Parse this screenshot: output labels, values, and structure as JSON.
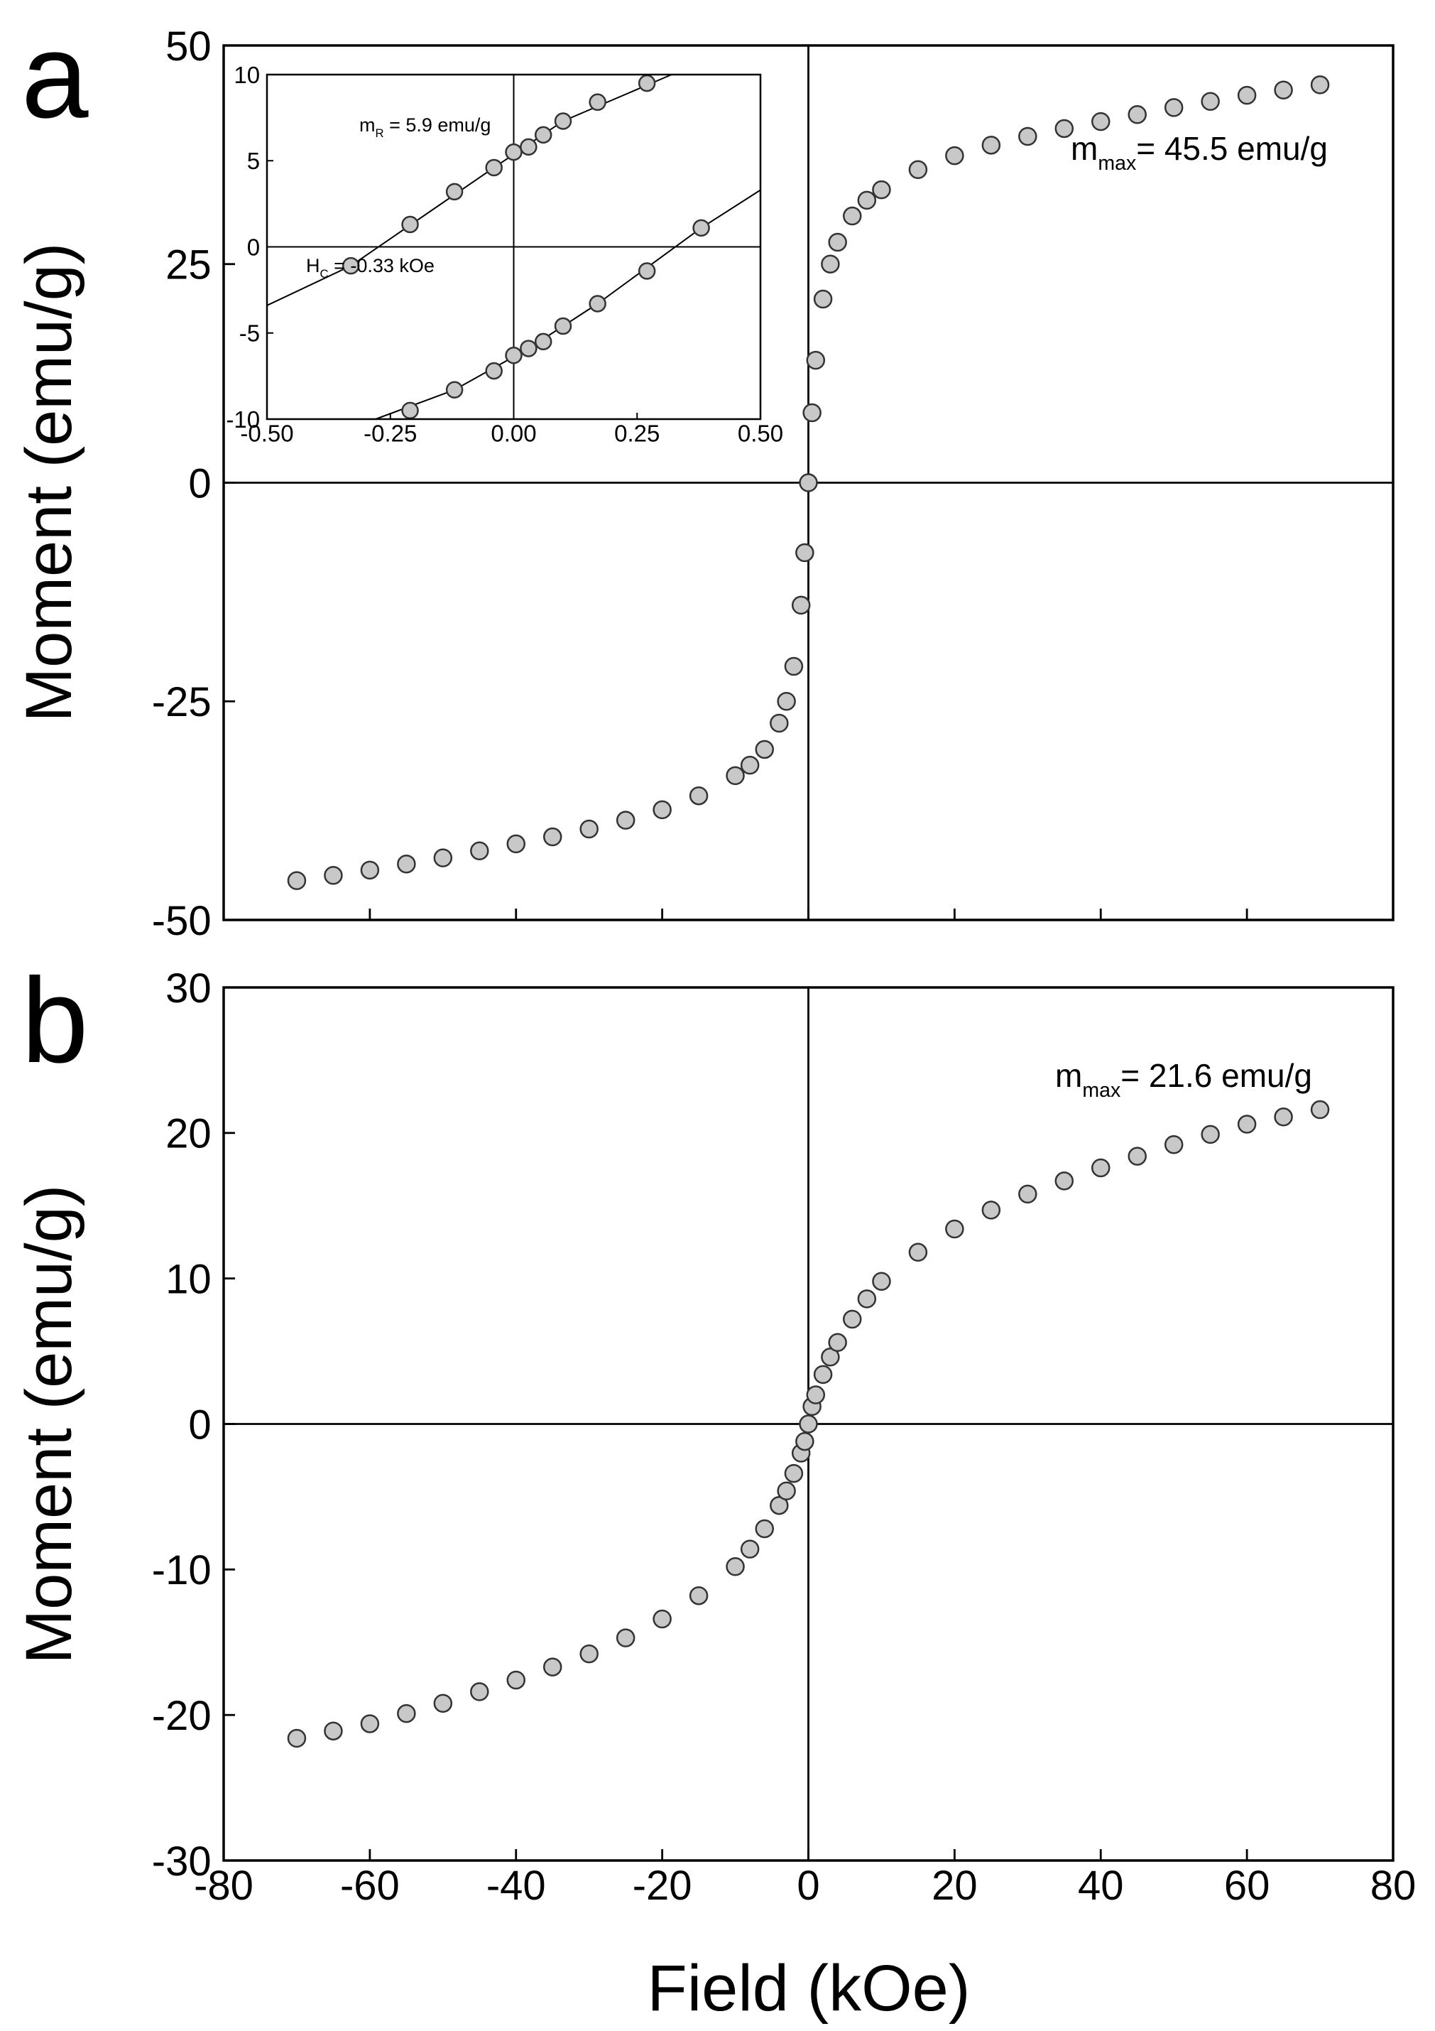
{
  "chart_data": [
    {
      "type": "scatter",
      "panel": "a",
      "ylabel": "Moment (emu/g)",
      "xlim": [
        -80,
        80
      ],
      "ylim": [
        -50,
        50
      ],
      "xticks": [
        -80,
        -60,
        -40,
        -20,
        0,
        20,
        40,
        60,
        80
      ],
      "xtick_labels": false,
      "yticks": [
        -50,
        -25,
        0,
        25,
        50
      ],
      "zero_lines": true,
      "annotation": {
        "text": "m",
        "sub": "max",
        "after": "= 45.5 emu/g"
      },
      "series": [
        {
          "style": "markers",
          "color": "#c8c8c8",
          "edgecolor": "#333333",
          "x": [
            -70,
            -65,
            -60,
            -55,
            -50,
            -45,
            -40,
            -35,
            -30,
            -25,
            -20,
            -15,
            -10,
            -8,
            -6,
            -4,
            -3,
            -2,
            -1,
            -0.5,
            0,
            0.5,
            1,
            2,
            3,
            4,
            6,
            8,
            10,
            15,
            20,
            25,
            30,
            35,
            40,
            45,
            50,
            55,
            60,
            65,
            70
          ],
          "values": [
            -45.5,
            -44.9,
            -44.3,
            -43.6,
            -42.9,
            -42.1,
            -41.3,
            -40.5,
            -39.6,
            -38.6,
            -37.4,
            -35.8,
            -33.5,
            -32.3,
            -30.5,
            -27.5,
            -25,
            -21,
            -14,
            -8,
            0,
            8,
            14,
            21,
            25,
            27.5,
            30.5,
            32.3,
            33.5,
            35.8,
            37.4,
            38.6,
            39.6,
            40.5,
            41.3,
            42.1,
            42.9,
            43.6,
            44.3,
            44.9,
            45.5
          ]
        }
      ]
    },
    {
      "type": "scatter",
      "xlim": [
        -0.5,
        0.5
      ],
      "ylim": [
        -10,
        10
      ],
      "xticks": [
        {
          "value": -0.5,
          "label": "-0.50"
        },
        -0.25,
        {
          "value": 0,
          "label": "0.00"
        },
        0.25,
        {
          "value": 0.5,
          "label": "0.50"
        }
      ],
      "yticks": [
        -10,
        -5,
        0,
        5,
        10
      ],
      "zero_lines": true,
      "annotations": [
        {
          "text": "m",
          "sub": "R",
          "after": " = 5.9 emu/g"
        },
        {
          "text": "H",
          "sub": "C",
          "after": " = -0.33 kOe"
        }
      ],
      "series": [
        {
          "style": "line",
          "color": "#000000",
          "x": [
            -0.5,
            -0.33,
            -0.04,
            0.1,
            0.32
          ],
          "values": [
            -3.4,
            -1.1,
            4.6,
            7.3,
            10
          ]
        },
        {
          "style": "line",
          "color": "#000000",
          "x": [
            -0.28,
            -0.12,
            0.03,
            0.17,
            0.38,
            0.5
          ],
          "values": [
            -10,
            -8.3,
            -5.9,
            -3.3,
            1.1,
            3.3
          ]
        },
        {
          "style": "markers",
          "color": "#c8c8c8",
          "edgecolor": "#333333",
          "x": [
            -0.33,
            -0.21,
            -0.12,
            -0.04,
            0,
            0.03,
            0.06,
            0.1,
            0.17,
            0.27
          ],
          "values": [
            -1.1,
            1.3,
            3.2,
            4.6,
            5.5,
            5.8,
            6.5,
            7.3,
            8.4,
            9.5
          ]
        },
        {
          "style": "markers",
          "color": "#c8c8c8",
          "edgecolor": "#333333",
          "x": [
            -0.21,
            -0.12,
            -0.04,
            0,
            0.03,
            0.06,
            0.1,
            0.17,
            0.27,
            0.38
          ],
          "values": [
            -9.5,
            -8.3,
            -7.2,
            -6.3,
            -5.9,
            -5.5,
            -4.6,
            -3.3,
            -1.4,
            1.1
          ]
        }
      ]
    },
    {
      "type": "scatter",
      "panel": "b",
      "ylabel": "Moment (emu/g)",
      "xlabel": "Field (kOe)",
      "xlim": [
        -80,
        80
      ],
      "ylim": [
        -30,
        30
      ],
      "xticks": [
        -80,
        -60,
        -40,
        -20,
        0,
        20,
        40,
        60,
        80
      ],
      "yticks": [
        -30,
        -20,
        -10,
        0,
        10,
        20,
        30
      ],
      "zero_lines": true,
      "annotation": {
        "text": "m",
        "sub": "max",
        "after": "= 21.6 emu/g"
      },
      "series": [
        {
          "style": "markers",
          "color": "#c8c8c8",
          "edgecolor": "#333333",
          "x": [
            -70,
            -65,
            -60,
            -55,
            -50,
            -45,
            -40,
            -35,
            -30,
            -25,
            -20,
            -15,
            -10,
            -8,
            -6,
            -4,
            -3,
            -2,
            -1,
            -0.5,
            0,
            0.5,
            1,
            2,
            3,
            4,
            6,
            8,
            10,
            15,
            20,
            25,
            30,
            35,
            40,
            45,
            50,
            55,
            60,
            65,
            70
          ],
          "values": [
            -21.6,
            -21.1,
            -20.6,
            -19.9,
            -19.2,
            -18.4,
            -17.6,
            -16.7,
            -15.8,
            -14.7,
            -13.4,
            -11.8,
            -9.8,
            -8.6,
            -7.2,
            -5.6,
            -4.6,
            -3.4,
            -2,
            -1.2,
            0,
            1.2,
            2,
            3.4,
            4.6,
            5.6,
            7.2,
            8.6,
            9.8,
            11.8,
            13.4,
            14.7,
            15.8,
            16.7,
            17.6,
            18.4,
            19.2,
            19.9,
            20.6,
            21.1,
            21.6
          ]
        }
      ]
    }
  ]
}
